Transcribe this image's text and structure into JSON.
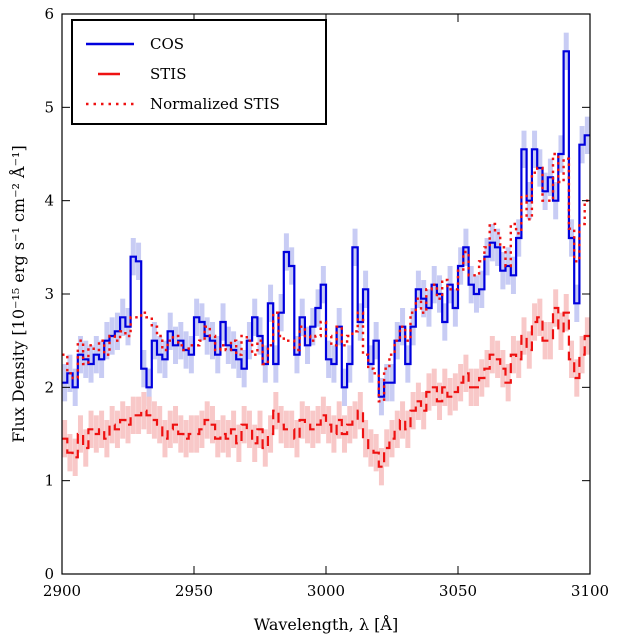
{
  "chart_data": {
    "type": "line",
    "title": "",
    "xlabel": "Wavelength, λ [Å]",
    "ylabel": "Flux Density [10⁻¹⁵ erg s⁻¹ cm⁻² Å⁻¹]",
    "xlim": [
      2900,
      3100
    ],
    "ylim": [
      0,
      6
    ],
    "xticks": [
      2900,
      2950,
      3000,
      3050,
      3100
    ],
    "yticks": [
      0,
      1,
      2,
      3,
      4,
      5,
      6
    ],
    "grid": false,
    "legend_position": "top-left",
    "series": [
      {
        "name": "COS",
        "color": "#0000dd",
        "style": "steps-solid",
        "error_color": "#c8ccf4",
        "x": [
          2900,
          2902,
          2904,
          2906,
          2908,
          2910,
          2912,
          2914,
          2916,
          2918,
          2920,
          2922,
          2924,
          2926,
          2928,
          2930,
          2932,
          2934,
          2936,
          2938,
          2940,
          2942,
          2944,
          2946,
          2948,
          2950,
          2952,
          2954,
          2956,
          2958,
          2960,
          2962,
          2964,
          2966,
          2968,
          2970,
          2972,
          2974,
          2976,
          2978,
          2980,
          2982,
          2984,
          2986,
          2988,
          2990,
          2992,
          2994,
          2996,
          2998,
          3000,
          3002,
          3004,
          3006,
          3008,
          3010,
          3012,
          3014,
          3016,
          3018,
          3020,
          3022,
          3024,
          3026,
          3028,
          3030,
          3032,
          3034,
          3036,
          3038,
          3040,
          3042,
          3044,
          3046,
          3048,
          3050,
          3052,
          3054,
          3056,
          3058,
          3060,
          3062,
          3064,
          3066,
          3068,
          3070,
          3072,
          3074,
          3076,
          3078,
          3080,
          3082,
          3084,
          3086,
          3088,
          3090,
          3092,
          3094,
          3096,
          3098
        ],
        "y": [
          2.05,
          2.15,
          2.0,
          2.35,
          2.3,
          2.25,
          2.35,
          2.3,
          2.5,
          2.55,
          2.6,
          2.75,
          2.65,
          3.4,
          3.35,
          2.2,
          2.0,
          2.5,
          2.35,
          2.3,
          2.6,
          2.45,
          2.5,
          2.4,
          2.35,
          2.75,
          2.7,
          2.55,
          2.5,
          2.35,
          2.7,
          2.45,
          2.4,
          2.3,
          2.2,
          2.5,
          2.75,
          2.55,
          2.25,
          2.9,
          2.25,
          2.8,
          3.45,
          3.3,
          2.35,
          2.75,
          2.45,
          2.65,
          2.85,
          3.1,
          2.3,
          2.25,
          2.65,
          2.0,
          2.25,
          3.5,
          2.7,
          3.05,
          2.25,
          2.5,
          1.9,
          2.05,
          2.05,
          2.5,
          2.65,
          2.25,
          2.65,
          3.05,
          2.95,
          2.85,
          3.1,
          3.0,
          2.7,
          3.1,
          2.85,
          3.3,
          3.5,
          3.1,
          3.0,
          3.05,
          3.4,
          3.55,
          3.5,
          3.25,
          3.3,
          3.2,
          3.6,
          4.55,
          4.0,
          4.55,
          4.35,
          4.1,
          4.25,
          4.0,
          4.5,
          5.6,
          3.6,
          2.9,
          4.6,
          4.7
        ]
      },
      {
        "name": "STIS",
        "color": "#ee1111",
        "style": "steps-dashed",
        "error_color": "#f8c8c8",
        "x": [
          2900,
          2902,
          2904,
          2906,
          2908,
          2910,
          2912,
          2914,
          2916,
          2918,
          2920,
          2922,
          2924,
          2926,
          2928,
          2930,
          2932,
          2934,
          2936,
          2938,
          2940,
          2942,
          2944,
          2946,
          2948,
          2950,
          2952,
          2954,
          2956,
          2958,
          2960,
          2962,
          2964,
          2966,
          2968,
          2970,
          2972,
          2974,
          2976,
          2978,
          2980,
          2982,
          2984,
          2986,
          2988,
          2990,
          2992,
          2994,
          2996,
          2998,
          3000,
          3002,
          3004,
          3006,
          3008,
          3010,
          3012,
          3014,
          3016,
          3018,
          3020,
          3022,
          3024,
          3026,
          3028,
          3030,
          3032,
          3034,
          3036,
          3038,
          3040,
          3042,
          3044,
          3046,
          3048,
          3050,
          3052,
          3054,
          3056,
          3058,
          3060,
          3062,
          3064,
          3066,
          3068,
          3070,
          3072,
          3074,
          3076,
          3078,
          3080,
          3082,
          3084,
          3086,
          3088,
          3090,
          3092,
          3094,
          3096,
          3098
        ],
        "y": [
          1.45,
          1.3,
          1.25,
          1.5,
          1.35,
          1.55,
          1.5,
          1.55,
          1.45,
          1.6,
          1.55,
          1.65,
          1.6,
          1.7,
          1.7,
          1.75,
          1.7,
          1.65,
          1.6,
          1.45,
          1.55,
          1.6,
          1.5,
          1.45,
          1.5,
          1.5,
          1.55,
          1.65,
          1.6,
          1.45,
          1.5,
          1.45,
          1.55,
          1.4,
          1.6,
          1.55,
          1.4,
          1.55,
          1.35,
          1.5,
          1.75,
          1.6,
          1.55,
          1.55,
          1.45,
          1.65,
          1.6,
          1.55,
          1.6,
          1.7,
          1.6,
          1.5,
          1.65,
          1.5,
          1.6,
          1.65,
          1.75,
          1.45,
          1.35,
          1.3,
          1.15,
          1.35,
          1.45,
          1.55,
          1.65,
          1.55,
          1.75,
          1.85,
          1.75,
          1.95,
          2.0,
          1.85,
          2.0,
          1.9,
          1.95,
          2.05,
          2.15,
          2.0,
          2.0,
          2.1,
          2.2,
          2.35,
          2.3,
          2.2,
          2.05,
          2.35,
          2.3,
          2.55,
          2.4,
          2.7,
          2.75,
          2.5,
          2.5,
          2.85,
          2.6,
          2.8,
          2.3,
          2.1,
          2.35,
          2.55
        ]
      },
      {
        "name": "Normalized STIS",
        "color": "#ee1111",
        "style": "steps-dotted",
        "x": [
          2900,
          2902,
          2904,
          2906,
          2908,
          2910,
          2912,
          2914,
          2916,
          2918,
          2920,
          2922,
          2924,
          2926,
          2928,
          2930,
          2932,
          2934,
          2936,
          2938,
          2940,
          2942,
          2944,
          2946,
          2948,
          2950,
          2952,
          2954,
          2956,
          2958,
          2960,
          2962,
          2964,
          2966,
          2968,
          2970,
          2972,
          2974,
          2976,
          2978,
          2980,
          2982,
          2984,
          2986,
          2988,
          2990,
          2992,
          2994,
          2996,
          2998,
          3000,
          3002,
          3004,
          3006,
          3008,
          3010,
          3012,
          3014,
          3016,
          3018,
          3020,
          3022,
          3024,
          3026,
          3028,
          3030,
          3032,
          3034,
          3036,
          3038,
          3040,
          3042,
          3044,
          3046,
          3048,
          3050,
          3052,
          3054,
          3056,
          3058,
          3060,
          3062,
          3064,
          3066,
          3068,
          3070,
          3072,
          3074,
          3076,
          3078,
          3080,
          3082,
          3084,
          3086,
          3088,
          3090,
          3092,
          3094,
          3096,
          3098
        ],
        "y": [
          2.35,
          2.15,
          2.1,
          2.5,
          2.25,
          2.45,
          2.4,
          2.5,
          2.35,
          2.55,
          2.5,
          2.6,
          2.55,
          2.75,
          2.75,
          2.8,
          2.75,
          2.65,
          2.55,
          2.4,
          2.5,
          2.55,
          2.45,
          2.4,
          2.45,
          2.45,
          2.5,
          2.65,
          2.55,
          2.4,
          2.45,
          2.4,
          2.5,
          2.35,
          2.55,
          2.5,
          2.35,
          2.5,
          2.25,
          2.45,
          2.8,
          2.55,
          2.5,
          2.5,
          2.4,
          2.65,
          2.55,
          2.5,
          2.55,
          2.7,
          2.55,
          2.45,
          2.65,
          2.45,
          2.55,
          2.6,
          2.8,
          2.35,
          2.2,
          2.15,
          1.85,
          2.2,
          2.35,
          2.5,
          2.65,
          2.5,
          2.8,
          2.95,
          2.8,
          3.05,
          3.1,
          2.95,
          3.15,
          3.05,
          3.05,
          3.25,
          3.45,
          3.2,
          3.2,
          3.35,
          3.5,
          3.75,
          3.65,
          3.5,
          3.3,
          3.75,
          3.65,
          4.05,
          3.8,
          4.3,
          4.35,
          4.0,
          4.0,
          4.5,
          4.2,
          4.45,
          3.7,
          3.35,
          3.75,
          4.0
        ]
      }
    ]
  }
}
